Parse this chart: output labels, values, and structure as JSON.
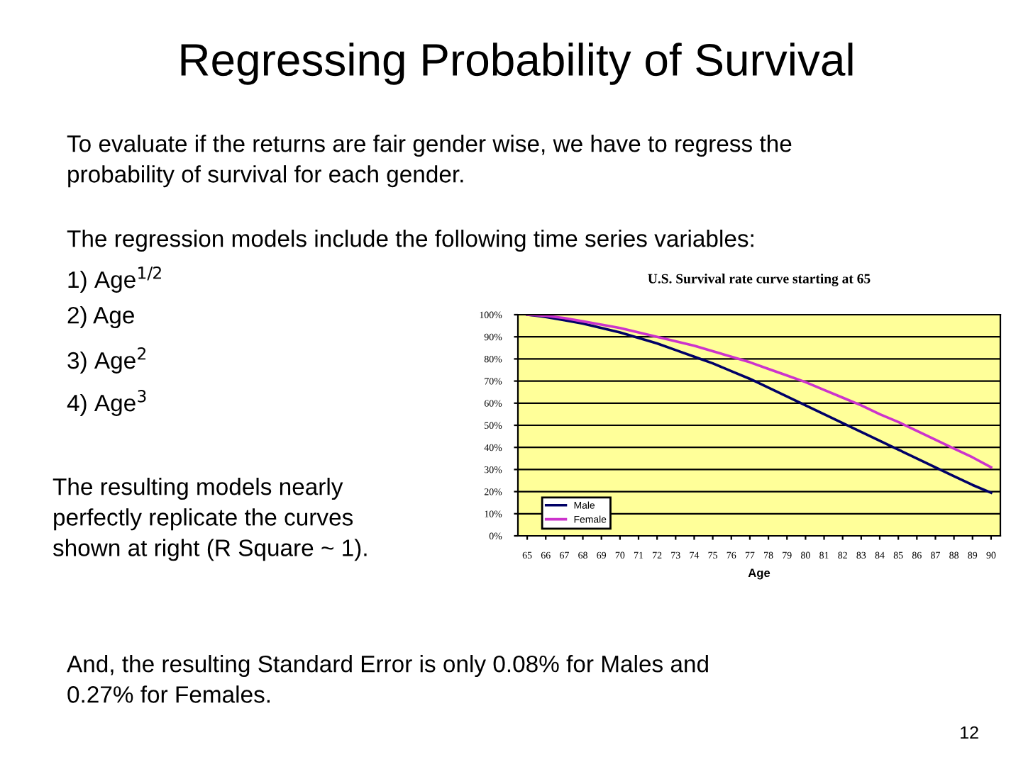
{
  "chart_data": {
    "type": "line",
    "title": "Regressing Probability of Survival",
    "subtitle": "U.S. Survival rate curve starting at 65",
    "xlabel": "Age",
    "categories": [
      "65",
      "66",
      "67",
      "68",
      "69",
      "70",
      "71",
      "72",
      "73",
      "74",
      "75",
      "76",
      "77",
      "78",
      "79",
      "80",
      "81",
      "82",
      "83",
      "84",
      "85",
      "86",
      "87",
      "88",
      "89",
      "90"
    ],
    "series": [
      {
        "name": "Male",
        "color": "#000066",
        "values": [
          100,
          99,
          97.5,
          96,
          94,
          92,
          89.5,
          87,
          84,
          81,
          78,
          74.5,
          71,
          67,
          63,
          59,
          55,
          51,
          47,
          43,
          39,
          35,
          31,
          27,
          23,
          19.5
        ]
      },
      {
        "name": "Female",
        "color": "#cc33cc",
        "values": [
          100,
          99.5,
          98.5,
          97,
          95.5,
          94,
          92,
          90,
          88,
          86,
          83.5,
          81,
          78.5,
          75.5,
          72.5,
          69.5,
          66,
          62.5,
          59,
          55,
          51.5,
          47.5,
          43.5,
          39.5,
          35.5,
          31
        ]
      }
    ],
    "ylim": [
      0,
      100
    ],
    "yticks": [
      {
        "value": 0,
        "label": "0%"
      },
      {
        "value": 10,
        "label": "10%"
      },
      {
        "value": 20,
        "label": "20%"
      },
      {
        "value": 30,
        "label": "30%"
      },
      {
        "value": 40,
        "label": "40%"
      },
      {
        "value": 50,
        "label": "50%"
      },
      {
        "value": 60,
        "label": "60%"
      },
      {
        "value": 70,
        "label": "70%"
      },
      {
        "value": 80,
        "label": "80%"
      },
      {
        "value": 90,
        "label": "90%"
      },
      {
        "value": 100,
        "label": "100%"
      }
    ],
    "grid": "y",
    "legend": "bottom left",
    "marker": "none",
    "line_style": "solid",
    "annotations": [
      "To evaluate if the returns are fair gender wise, we have to regress the\nprobability of survival for each gender.",
      "The regression models include the following time series variables:",
      "1) Age$^{1/2}$",
      "2) Age",
      "3) Age$^{2}$",
      "4) Age$^{3}$",
      "The resulting models nearly\nperfectly replicate the curves\nshown at right (R Square ~ 1).",
      "And, the resulting Standard Error is only 0.08% for Males and\n0.27% for Females.",
      "12"
    ]
  }
}
